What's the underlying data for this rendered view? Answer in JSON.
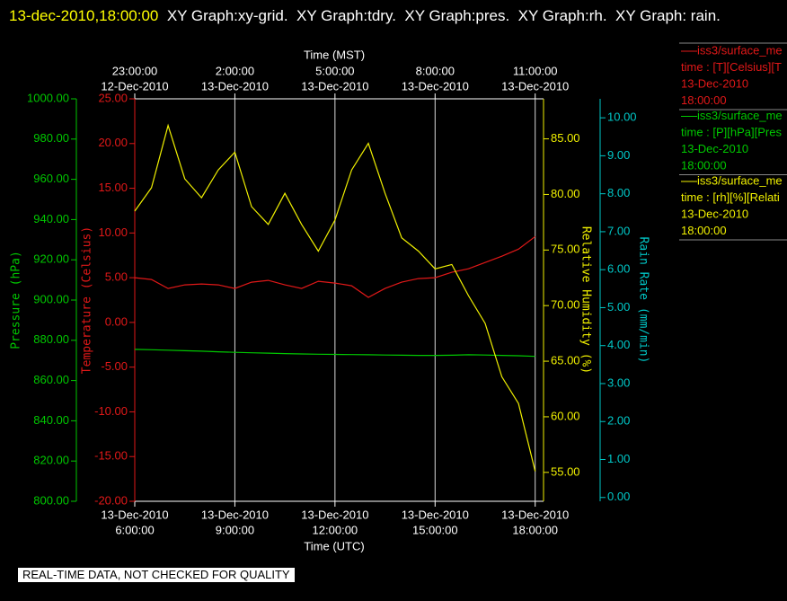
{
  "chart_data": {
    "type": "line",
    "title": "13-dec-2010,18:00:00",
    "subtitle": "XY Graph:xy-grid.  XY Graph:tdry.  XY Graph:pres.  XY Graph:rh.  XY Graph: rain.",
    "note": "REAL-TIME DATA, NOT CHECKED FOR QUALITY",
    "xlabel": "Time (UTC)",
    "x2label": "Time (MST)",
    "grid": true,
    "xlim": [
      "2010-12-13T06:00",
      "2010-12-13T18:15"
    ],
    "xticks": [
      {
        "value": "2010-12-13T06:00",
        "label": [
          "13-Dec-2010",
          "6:00:00"
        ]
      },
      {
        "value": "2010-12-13T09:00",
        "label": [
          "13-Dec-2010",
          "9:00:00"
        ]
      },
      {
        "value": "2010-12-13T12:00",
        "label": [
          "13-Dec-2010",
          "12:00:00"
        ]
      },
      {
        "value": "2010-12-13T15:00",
        "label": [
          "13-Dec-2010",
          "15:00:00"
        ]
      },
      {
        "value": "2010-12-13T18:00",
        "label": [
          "13-Dec-2010",
          "18:00:00"
        ]
      }
    ],
    "x2ticks": [
      {
        "value": "2010-12-13T06:00",
        "label": [
          "12-Dec-2010",
          "23:00:00"
        ]
      },
      {
        "value": "2010-12-13T09:00",
        "label": [
          "13-Dec-2010",
          "2:00:00"
        ]
      },
      {
        "value": "2010-12-13T12:00",
        "label": [
          "13-Dec-2010",
          "5:00:00"
        ]
      },
      {
        "value": "2010-12-13T15:00",
        "label": [
          "13-Dec-2010",
          "8:00:00"
        ]
      },
      {
        "value": "2010-12-13T18:00",
        "label": [
          "13-Dec-2010",
          "11:00:00"
        ]
      }
    ],
    "axes": {
      "pressure": {
        "label": "Pressure (hPa)",
        "color": "#00c800",
        "lim": [
          800,
          1000
        ],
        "ticks": [
          {
            "value": 800,
            "label": "800.00"
          },
          {
            "value": 820,
            "label": "820.00"
          },
          {
            "value": 840,
            "label": "840.00"
          },
          {
            "value": 860,
            "label": "860.00"
          },
          {
            "value": 880,
            "label": "880.00"
          },
          {
            "value": 900,
            "label": "900.00"
          },
          {
            "value": 920,
            "label": "920.00"
          },
          {
            "value": 940,
            "label": "940.00"
          },
          {
            "value": 960,
            "label": "960.00"
          },
          {
            "value": 980,
            "label": "980.00"
          },
          {
            "value": 1000,
            "label": "1000.00"
          }
        ]
      },
      "temperature": {
        "label": "Temperature (Celsius)",
        "color": "#e01818",
        "lim": [
          -20,
          25
        ],
        "ticks": [
          {
            "value": -20,
            "label": "-20.00"
          },
          {
            "value": -15,
            "label": "-15.00"
          },
          {
            "value": -10,
            "label": "-10.00"
          },
          {
            "value": -5,
            "label": "-5.00"
          },
          {
            "value": 0,
            "label": "0.00"
          },
          {
            "value": 5,
            "label": "5.00"
          },
          {
            "value": 10,
            "label": "10.00"
          },
          {
            "value": 15,
            "label": "15.00"
          },
          {
            "value": 20,
            "label": "20.00"
          },
          {
            "value": 25,
            "label": "25.00"
          }
        ]
      },
      "rh": {
        "label": "Relative Humidity (%)",
        "color": "#f0f000",
        "lim": [
          52.4,
          88.6
        ],
        "ticks": [
          {
            "value": 55,
            "label": "55.00"
          },
          {
            "value": 60,
            "label": "60.00"
          },
          {
            "value": 65,
            "label": "65.00"
          },
          {
            "value": 70,
            "label": "70.00"
          },
          {
            "value": 75,
            "label": "75.00"
          },
          {
            "value": 80,
            "label": "80.00"
          },
          {
            "value": 85,
            "label": "85.00"
          }
        ]
      },
      "rain": {
        "label": "Rain Rate (mm/min)",
        "color": "#00c8c8",
        "lim": [
          -0.1,
          10.5
        ],
        "ticks": [
          {
            "value": 0,
            "label": "0.00"
          },
          {
            "value": 1,
            "label": "1.00"
          },
          {
            "value": 2,
            "label": "2.00"
          },
          {
            "value": 3,
            "label": "3.00"
          },
          {
            "value": 4,
            "label": "4.00"
          },
          {
            "value": 5,
            "label": "5.00"
          },
          {
            "value": 6,
            "label": "6.00"
          },
          {
            "value": 7,
            "label": "7.00"
          },
          {
            "value": 8,
            "label": "8.00"
          },
          {
            "value": 9,
            "label": "9.00"
          },
          {
            "value": 10,
            "label": "10.00"
          }
        ]
      }
    },
    "x": [
      "2010-12-13T06:00",
      "2010-12-13T06:30",
      "2010-12-13T07:00",
      "2010-12-13T07:30",
      "2010-12-13T08:00",
      "2010-12-13T08:30",
      "2010-12-13T09:00",
      "2010-12-13T09:30",
      "2010-12-13T10:00",
      "2010-12-13T10:30",
      "2010-12-13T11:00",
      "2010-12-13T11:30",
      "2010-12-13T12:00",
      "2010-12-13T12:30",
      "2010-12-13T13:00",
      "2010-12-13T13:30",
      "2010-12-13T14:00",
      "2010-12-13T14:30",
      "2010-12-13T15:00",
      "2010-12-13T15:30",
      "2010-12-13T16:00",
      "2010-12-13T16:30",
      "2010-12-13T17:00",
      "2010-12-13T17:30",
      "2010-12-13T18:00"
    ],
    "series": [
      {
        "name": "iss3/surface_me",
        "detail": "time : [T][Celsius][T",
        "date": "13-Dec-2010",
        "time": "18:00:00",
        "color": "#e01818",
        "axis": "temperature",
        "values": [
          5.0,
          4.8,
          3.8,
          4.2,
          4.3,
          4.2,
          3.8,
          4.5,
          4.7,
          4.2,
          3.8,
          4.6,
          4.4,
          4.1,
          2.8,
          3.8,
          4.5,
          4.9,
          5.0,
          5.6,
          6.0,
          6.7,
          7.4,
          8.2,
          9.6
        ]
      },
      {
        "name": "iss3/surface_me",
        "detail": "time : [P][hPa][Pres",
        "date": "13-Dec-2010",
        "time": "18:00:00",
        "color": "#00c800",
        "axis": "pressure",
        "values": [
          875.5,
          875.3,
          875.1,
          874.8,
          874.6,
          874.3,
          874.0,
          873.8,
          873.6,
          873.4,
          873.2,
          873.1,
          873.0,
          872.9,
          872.8,
          872.7,
          872.6,
          872.5,
          872.5,
          872.6,
          872.8,
          872.7,
          872.5,
          872.3,
          872.0
        ]
      },
      {
        "name": "iss3/surface_me",
        "detail": "time : [rh][%][Relati",
        "date": "13-Dec-2010",
        "time": "18:00:00",
        "color": "#f0f000",
        "axis": "rh",
        "values": [
          78.5,
          80.6,
          86.2,
          81.4,
          79.7,
          82.2,
          83.8,
          78.9,
          77.3,
          80.1,
          77.3,
          74.9,
          77.7,
          82.2,
          84.6,
          80.1,
          76.1,
          74.9,
          73.3,
          73.7,
          70.9,
          68.4,
          63.6,
          61.2,
          55.1
        ]
      }
    ]
  }
}
